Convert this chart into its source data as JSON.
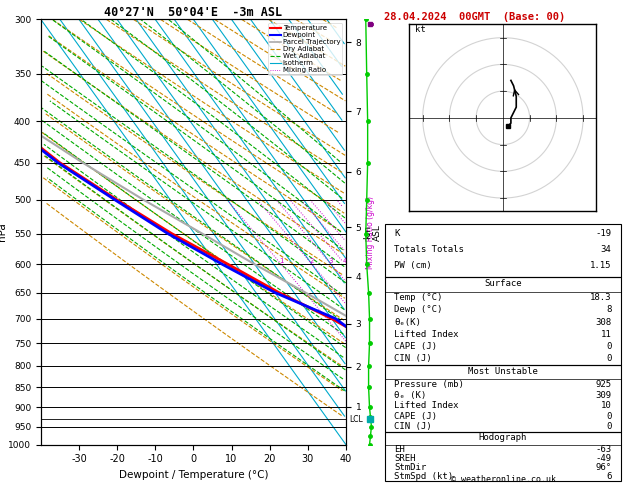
{
  "title_left": "40°27'N  50°04'E  -3m ASL",
  "title_right": "28.04.2024  00GMT  (Base: 00)",
  "xlabel": "Dewpoint / Temperature (°C)",
  "ylabel_left": "hPa",
  "pressure_levels": [
    300,
    350,
    400,
    450,
    500,
    550,
    600,
    650,
    700,
    750,
    800,
    850,
    900,
    950,
    1000
  ],
  "temp_ticks": [
    -30,
    -20,
    -10,
    0,
    10,
    20,
    30,
    40
  ],
  "pmin": 300,
  "pmax": 1000,
  "tmin": -40,
  "tmax": 40,
  "skew": 1.0,
  "temp_profile_T": [
    -75.0,
    -72.0,
    -68.0,
    -62.0,
    -54.0,
    -46.0,
    -37.0,
    -29.0,
    -20.0,
    -13.0,
    -5.0,
    3.0,
    10.0,
    16.0,
    18.3
  ],
  "temp_profile_P": [
    300,
    350,
    400,
    450,
    500,
    550,
    600,
    650,
    700,
    750,
    800,
    850,
    900,
    950,
    1000
  ],
  "dew_profile_T": [
    -76.0,
    -73.0,
    -68.5,
    -62.5,
    -54.5,
    -47.0,
    -38.5,
    -30.0,
    -19.0,
    -15.0,
    -2.0,
    5.0,
    7.0,
    7.5,
    8.0
  ],
  "dew_profile_P": [
    300,
    350,
    400,
    450,
    500,
    550,
    600,
    650,
    700,
    750,
    800,
    850,
    900,
    950,
    1000
  ],
  "parcel_T": [
    -77.0,
    -73.0,
    -65.0,
    -56.0,
    -47.0,
    -38.0,
    -30.0,
    -22.0,
    -15.0,
    -8.5,
    -2.0,
    4.0,
    9.0,
    14.0,
    18.3
  ],
  "parcel_P": [
    300,
    350,
    400,
    450,
    500,
    550,
    600,
    650,
    700,
    750,
    800,
    850,
    900,
    950,
    1000
  ],
  "LCL_pressure": 930,
  "mixing_ratios": [
    1,
    2,
    3,
    4,
    5,
    6,
    8,
    10,
    15,
    20,
    25
  ],
  "isotherm_temps": [
    -40,
    -35,
    -30,
    -25,
    -20,
    -15,
    -10,
    -5,
    0,
    5,
    10,
    15,
    20,
    25,
    30,
    35,
    40
  ],
  "km_labels": [
    1,
    2,
    3,
    4,
    5,
    6,
    7,
    8
  ],
  "km_pressures": [
    898,
    802,
    710,
    622,
    540,
    462,
    389,
    320
  ],
  "colors": {
    "temperature": "#ff0000",
    "dewpoint": "#0000ff",
    "parcel": "#aaaaaa",
    "dry_adiabat": "#cc8800",
    "wet_adiabat": "#00aa00",
    "isotherm": "#00aacc",
    "mixing_ratio": "#cc00cc",
    "background": "#ffffff",
    "grid": "#000000"
  },
  "info_panel": {
    "K": "-19",
    "Totals_Totals": "34",
    "PW_cm": "1.15",
    "Surface_Temp": "18.3",
    "Surface_Dewp": "8",
    "Surface_theta_e": "308",
    "Surface_LI": "11",
    "Surface_CAPE": "0",
    "Surface_CIN": "0",
    "MU_Pressure": "925",
    "MU_theta_e": "309",
    "MU_LI": "10",
    "MU_CAPE": "0",
    "MU_CIN": "0",
    "Hodograph_EH": "-63",
    "Hodograph_SREH": "-49",
    "Hodograph_StmDir": "96°",
    "Hodograph_StmSpd": "6"
  },
  "wind_profile": {
    "pressures": [
      1000,
      975,
      950,
      925,
      900,
      875,
      850,
      800,
      750,
      700,
      650,
      600,
      550,
      500,
      450,
      400,
      350,
      300
    ],
    "u": [
      3,
      2,
      1,
      0,
      -1,
      -2,
      -1,
      0,
      1,
      2,
      1,
      0,
      -1,
      0,
      1,
      0,
      -1,
      0
    ],
    "v": [
      -2,
      -1,
      0,
      1,
      2,
      3,
      3,
      4,
      5,
      6,
      8,
      9,
      10,
      11,
      12,
      13,
      12,
      11
    ]
  }
}
